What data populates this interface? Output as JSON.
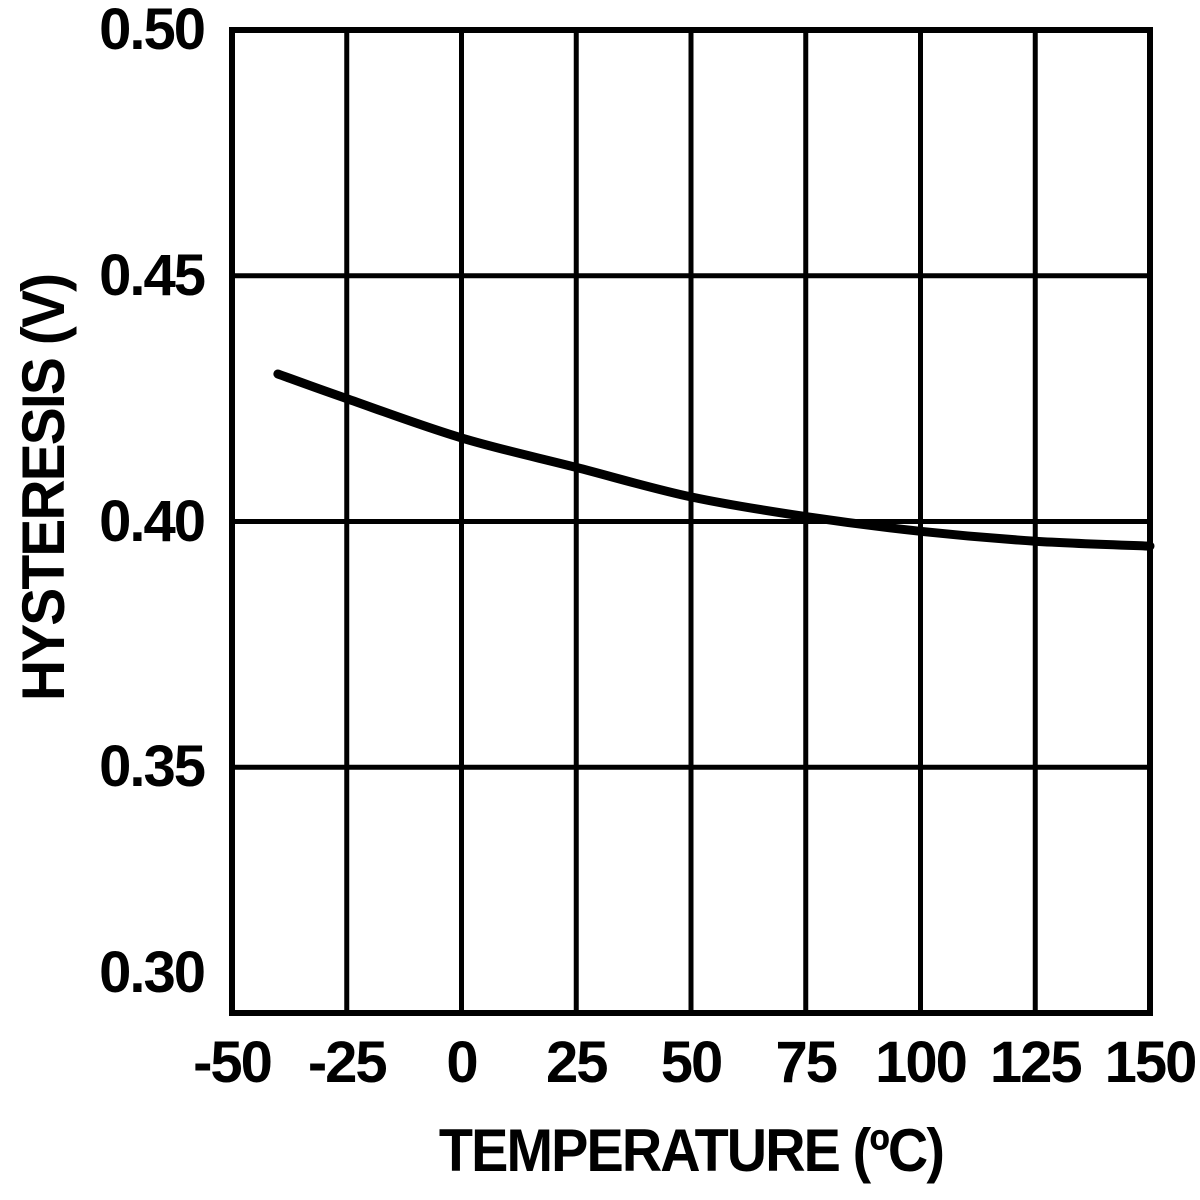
{
  "chart_data": {
    "type": "line",
    "xlabel": "TEMPERATURE (ºC)",
    "ylabel": "HYSTERESIS (V)",
    "xlim": [
      -50,
      150
    ],
    "ylim": [
      0.3,
      0.5
    ],
    "x_ticks": [
      -50,
      -25,
      0,
      25,
      50,
      75,
      100,
      125,
      150
    ],
    "x_tick_labels": [
      "-50",
      "-25",
      "0",
      "25",
      "50",
      "75",
      "100",
      "125",
      "150"
    ],
    "y_ticks": [
      0.3,
      0.35,
      0.4,
      0.45,
      0.5
    ],
    "y_tick_labels": [
      "0.30",
      "0.35",
      "0.40",
      "0.45",
      "0.50"
    ],
    "grid": true,
    "legend": null,
    "colors": {
      "curve": "#000000",
      "grid": "#000000",
      "border": "#000000",
      "background": "#ffffff"
    },
    "series": [
      {
        "name": "hysteresis",
        "color": "#000000",
        "x": [
          -40,
          -25,
          0,
          25,
          50,
          75,
          100,
          125,
          150
        ],
        "y": [
          0.43,
          0.425,
          0.417,
          0.411,
          0.405,
          0.401,
          0.398,
          0.396,
          0.395
        ]
      }
    ]
  }
}
